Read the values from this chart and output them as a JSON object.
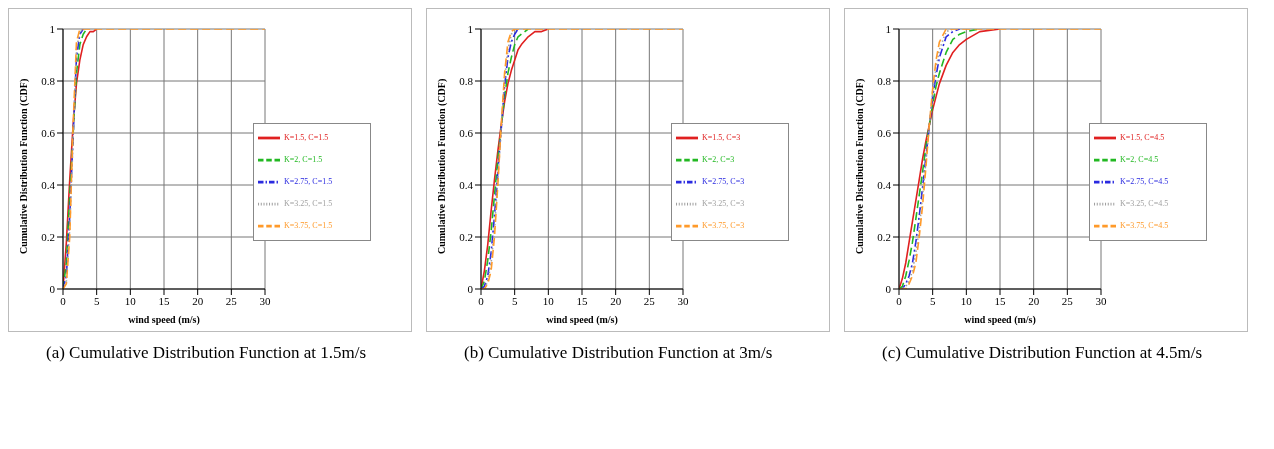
{
  "chart_data": [
    {
      "type": "line",
      "xlabel": "wind speed (m/s)",
      "ylabel": "Cumulative Distribution Function (CDF)",
      "xlim": [
        0,
        30
      ],
      "ylim": [
        0,
        1
      ],
      "xticks": [
        0,
        5,
        10,
        15,
        20,
        25,
        30
      ],
      "yticks": [
        0,
        0.2,
        0.4,
        0.6,
        0.8,
        1
      ],
      "grid": true,
      "legend": "bottom right",
      "annotations": [
        "(a) Cumulative Distribution Function at 1.5m/s"
      ],
      "series": [
        {
          "name": "K=1.5, C=1.5",
          "color": "#e02020",
          "line_style": "solid",
          "x": [
            0,
            0.5,
            1,
            1.5,
            2,
            2.5,
            3,
            3.5,
            4,
            4.5,
            5
          ],
          "values": [
            0,
            0.18,
            0.42,
            0.63,
            0.79,
            0.88,
            0.94,
            0.97,
            0.99,
            0.99,
            1
          ]
        },
        {
          "name": "K=2, C=1.5",
          "color": "#22b822",
          "line_style": "dashed",
          "x": [
            0,
            0.5,
            1,
            2,
            2.5,
            3,
            3.5
          ],
          "values": [
            0,
            0.1,
            0.36,
            0.83,
            0.94,
            0.98,
            1
          ]
        },
        {
          "name": "K=2.75, C=1.5",
          "color": "#2a2ae0",
          "line_style": "dashdot",
          "x": [
            0,
            0.5,
            1,
            2,
            2.5,
            3
          ],
          "values": [
            0,
            0.05,
            0.28,
            0.89,
            0.98,
            1
          ]
        },
        {
          "name": "K=3.25, C=1.5",
          "color": "#a0a0a0",
          "line_style": "dotted",
          "x": [
            0,
            0.5,
            1,
            2,
            2.5,
            3
          ],
          "values": [
            0,
            0.03,
            0.23,
            0.92,
            0.99,
            1
          ]
        },
        {
          "name": "K=3.75, C=1.5",
          "color": "#ff9a2a",
          "line_style": "dashed",
          "x": [
            0,
            0.5,
            1,
            1.5,
            2,
            2.5,
            3,
            3.5,
            4,
            4.5,
            5,
            5.5,
            6,
            7,
            8,
            9,
            10,
            12,
            15,
            20,
            30
          ],
          "values": [
            0,
            0.02,
            0.2,
            0.63,
            0.95,
            1,
            1,
            1,
            1,
            1,
            1,
            1,
            1,
            1,
            1,
            1,
            1,
            1,
            1,
            1,
            1
          ]
        }
      ]
    },
    {
      "type": "line",
      "xlabel": "wind speed (m/s)",
      "ylabel": "Cumulative Distribution Function (CDF)",
      "xlim": [
        0,
        30
      ],
      "ylim": [
        0,
        1
      ],
      "xticks": [
        0,
        5,
        10,
        15,
        20,
        25,
        30
      ],
      "yticks": [
        0,
        0.2,
        0.4,
        0.6,
        0.8,
        1
      ],
      "grid": true,
      "legend": "bottom right",
      "annotations": [
        "(b) Cumulative Distribution Function at 3m/s"
      ],
      "series": [
        {
          "name": "K=1.5, C=3",
          "color": "#e02020",
          "line_style": "solid",
          "x": [
            0,
            0.5,
            1,
            1.5,
            2,
            2.5,
            3,
            3.5,
            4,
            4.5,
            5,
            5.5,
            6,
            7,
            8,
            9,
            10
          ],
          "values": [
            0,
            0.07,
            0.17,
            0.3,
            0.42,
            0.53,
            0.63,
            0.72,
            0.79,
            0.84,
            0.88,
            0.92,
            0.94,
            0.97,
            0.99,
            0.99,
            1
          ]
        },
        {
          "name": "K=2, C=3",
          "color": "#22b822",
          "line_style": "dashed",
          "x": [
            0,
            0.5,
            1,
            1.5,
            2,
            2.5,
            3.5,
            4,
            4.5,
            5,
            5.5,
            6,
            7
          ],
          "values": [
            0,
            0.03,
            0.11,
            0.22,
            0.36,
            0.5,
            0.74,
            0.83,
            0.89,
            0.94,
            0.97,
            0.98,
            1
          ]
        },
        {
          "name": "K=2.75, C=3",
          "color": "#2a2ae0",
          "line_style": "dashdot",
          "x": [
            0,
            0.5,
            1,
            1.5,
            2,
            2.5,
            3.5,
            4,
            4.5,
            5,
            5.5
          ],
          "values": [
            0,
            0.01,
            0.05,
            0.14,
            0.28,
            0.45,
            0.78,
            0.89,
            0.95,
            0.98,
            1
          ]
        },
        {
          "name": "K=3.25, C=3",
          "color": "#a0a0a0",
          "line_style": "dotted",
          "x": [
            0,
            0.5,
            1,
            1.5,
            2,
            2.5,
            3.5,
            4,
            4.5,
            5,
            5.5
          ],
          "values": [
            0,
            0,
            0.03,
            0.1,
            0.23,
            0.42,
            0.81,
            0.92,
            0.98,
            0.99,
            1
          ]
        },
        {
          "name": "K=3.75, C=3",
          "color": "#ff9a2a",
          "line_style": "dashed",
          "x": [
            0,
            0.5,
            1,
            1.5,
            2,
            2.5,
            3,
            3.5,
            4,
            4.5,
            5,
            5.5,
            6,
            7,
            8,
            9,
            10,
            12,
            15,
            20,
            30
          ],
          "values": [
            0,
            0,
            0.02,
            0.07,
            0.2,
            0.4,
            0.63,
            0.83,
            0.95,
            0.99,
            1,
            1,
            1,
            1,
            1,
            1,
            1,
            1,
            1,
            1,
            1
          ]
        }
      ]
    },
    {
      "type": "line",
      "xlabel": "wind speed (m/s)",
      "ylabel": "Cumulative Distribution Function (CDF)",
      "xlim": [
        0,
        30
      ],
      "ylim": [
        0,
        1
      ],
      "xticks": [
        0,
        5,
        10,
        15,
        20,
        25,
        30
      ],
      "yticks": [
        0,
        0.2,
        0.4,
        0.6,
        0.8,
        1
      ],
      "grid": true,
      "legend": "bottom right",
      "annotations": [
        "(c) Cumulative Distribution Function at 4.5m/s"
      ],
      "series": [
        {
          "name": "K=1.5, C=4.5",
          "color": "#e02020",
          "line_style": "solid",
          "x": [
            0,
            0.5,
            1,
            1.5,
            2,
            2.5,
            3,
            3.5,
            4,
            4.5,
            5,
            5.5,
            6,
            7,
            8,
            9,
            10,
            12,
            15
          ],
          "values": [
            0,
            0.04,
            0.1,
            0.18,
            0.26,
            0.34,
            0.42,
            0.5,
            0.57,
            0.63,
            0.69,
            0.74,
            0.79,
            0.86,
            0.91,
            0.94,
            0.96,
            0.99,
            1
          ]
        },
        {
          "name": "K=2, C=4.5",
          "color": "#22b822",
          "line_style": "dashed",
          "x": [
            0,
            0.5,
            1,
            1.5,
            2,
            2.5,
            3,
            3.5,
            4,
            5,
            5.5,
            6,
            7,
            8,
            9,
            10,
            12
          ],
          "values": [
            0,
            0.01,
            0.05,
            0.11,
            0.18,
            0.27,
            0.36,
            0.45,
            0.55,
            0.71,
            0.78,
            0.83,
            0.91,
            0.96,
            0.98,
            0.99,
            1
          ]
        },
        {
          "name": "K=2.75, C=4.5",
          "color": "#2a2ae0",
          "line_style": "dashdot",
          "x": [
            0,
            0.5,
            1,
            1.5,
            2,
            2.5,
            3,
            3.5,
            4,
            5,
            5.5,
            6,
            7,
            8,
            9
          ],
          "values": [
            0,
            0,
            0.02,
            0.05,
            0.1,
            0.18,
            0.28,
            0.39,
            0.51,
            0.74,
            0.82,
            0.89,
            0.97,
            0.99,
            1
          ]
        },
        {
          "name": "K=3.25, C=4.5",
          "color": "#a0a0a0",
          "line_style": "dotted",
          "x": [
            0,
            0.5,
            1,
            1.5,
            2,
            2.5,
            3,
            3.5,
            4,
            5,
            5.5,
            6,
            7,
            8
          ],
          "values": [
            0,
            0,
            0.01,
            0.03,
            0.07,
            0.14,
            0.23,
            0.36,
            0.49,
            0.76,
            0.85,
            0.92,
            0.99,
            1
          ]
        },
        {
          "name": "K=3.75, C=4.5",
          "color": "#ff9a2a",
          "line_style": "dashed",
          "x": [
            0,
            0.5,
            1,
            1.5,
            2,
            2.5,
            3,
            3.5,
            4,
            4.5,
            5,
            5.5,
            6,
            7,
            8,
            9,
            10,
            12,
            15,
            20,
            30
          ],
          "values": [
            0,
            0,
            0,
            0.02,
            0.05,
            0.1,
            0.2,
            0.32,
            0.47,
            0.63,
            0.77,
            0.88,
            0.95,
            1,
            1,
            1,
            1,
            1,
            1,
            1,
            1
          ]
        }
      ]
    }
  ]
}
